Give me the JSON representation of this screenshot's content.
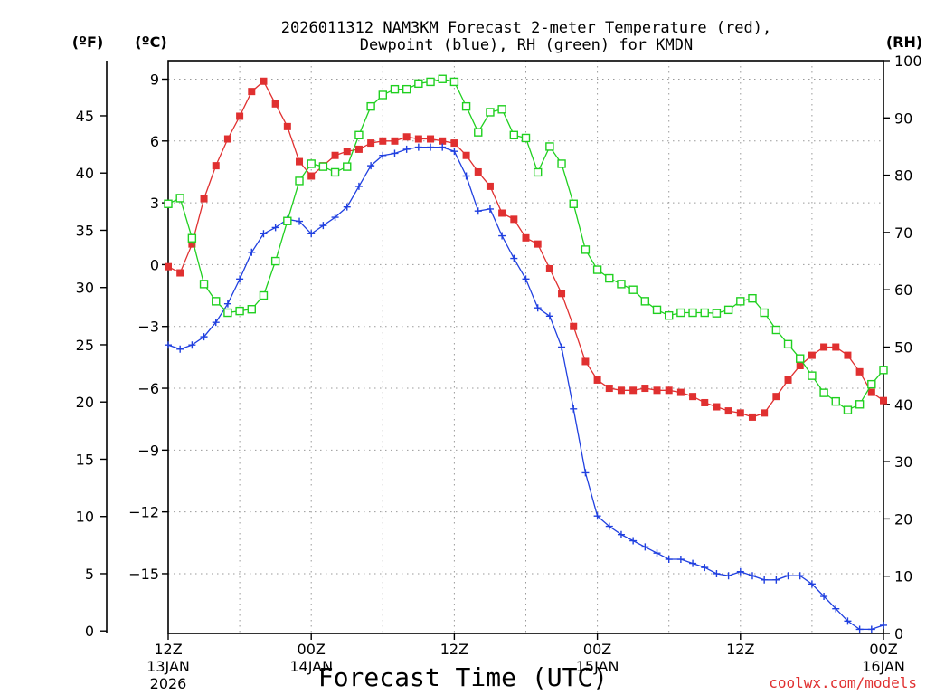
{
  "chart_data": {
    "type": "line",
    "title": "2026011312 NAM3KM Forecast 2-meter Temperature (red),",
    "subtitle": "Dewpoint (blue), RH (green) for KMDN",
    "xlabel": "Forecast Time (UTC)",
    "credit": "coolwx.com/models",
    "units": {
      "fahrenheit": "(ºF)",
      "celsius": "(ºC)",
      "rh": "(RH)"
    },
    "x_hours_range": [
      0,
      60
    ],
    "x_ticks": [
      {
        "hour": 0,
        "label": "12Z",
        "date": "13JAN",
        "year": "2026"
      },
      {
        "hour": 12,
        "label": "00Z",
        "date": "14JAN",
        "year": ""
      },
      {
        "hour": 24,
        "label": "12Z",
        "date": "",
        "year": ""
      },
      {
        "hour": 36,
        "label": "00Z",
        "date": "15JAN",
        "year": ""
      },
      {
        "hour": 48,
        "label": "12Z",
        "date": "",
        "year": ""
      },
      {
        "hour": 60,
        "label": "00Z",
        "date": "16JAN",
        "year": ""
      }
    ],
    "y_celsius": {
      "range": [
        -17.9,
        9.9
      ],
      "ticks": [
        9,
        6,
        3,
        0,
        -3,
        -6,
        -9,
        -12,
        -15
      ]
    },
    "y_fahrenheit": {
      "ticks": [
        45,
        40,
        35,
        30,
        25,
        20,
        15,
        10,
        5,
        0
      ]
    },
    "y_rh": {
      "range": [
        0,
        100
      ],
      "ticks": [
        100,
        90,
        80,
        70,
        60,
        50,
        40,
        30,
        20,
        10,
        0
      ]
    },
    "series": [
      {
        "name": "Temperature",
        "unit": "C",
        "color": "#e03030",
        "marker": "filled-square",
        "values": [
          -0.1,
          -0.4,
          1.0,
          3.2,
          4.8,
          6.1,
          7.2,
          8.4,
          8.9,
          7.8,
          6.7,
          5.0,
          4.3,
          4.8,
          5.3,
          5.5,
          5.6,
          5.9,
          6.0,
          6.0,
          6.2,
          6.1,
          6.1,
          6.0,
          5.9,
          5.3,
          4.5,
          3.8,
          2.5,
          2.2,
          1.3,
          1.0,
          -0.2,
          -1.4,
          -3.0,
          -4.7,
          -5.6,
          -6.0,
          -6.1,
          -6.1,
          -6.0,
          -6.1,
          -6.1,
          -6.2,
          -6.4,
          -6.7,
          -6.9,
          -7.1,
          -7.2,
          -7.4,
          -7.2,
          -6.4,
          -5.6,
          -4.9,
          -4.4,
          -4.0,
          -4.0,
          -4.4,
          -5.2,
          -6.2,
          -6.6
        ]
      },
      {
        "name": "Dewpoint",
        "unit": "C",
        "color": "#2040e0",
        "marker": "plus",
        "values": [
          -3.9,
          -4.1,
          -3.9,
          -3.5,
          -2.8,
          -1.9,
          -0.7,
          0.6,
          1.5,
          1.8,
          2.2,
          2.1,
          1.5,
          1.9,
          2.3,
          2.8,
          3.8,
          4.8,
          5.3,
          5.4,
          5.6,
          5.7,
          5.7,
          5.7,
          5.5,
          4.3,
          2.6,
          2.7,
          1.4,
          0.3,
          -0.7,
          -2.1,
          -2.5,
          -4.0,
          -7.0,
          -10.1,
          -12.2,
          -12.7,
          -13.1,
          -13.4,
          -13.7,
          -14.0,
          -14.3,
          -14.3,
          -14.5,
          -14.7,
          -15.0,
          -15.1,
          -14.9,
          -15.1,
          -15.3,
          -15.3,
          -15.1,
          -15.1,
          -15.5,
          -16.1,
          -16.7,
          -17.3,
          -17.7,
          -17.7,
          -17.5
        ]
      },
      {
        "name": "RH",
        "unit": "%",
        "color": "#20d020",
        "marker": "open-square",
        "values": [
          75,
          76,
          69,
          61,
          58,
          56,
          56.3,
          56.6,
          59,
          65,
          72,
          79,
          82,
          81.5,
          80.5,
          81.5,
          87,
          92,
          94,
          95,
          95,
          96,
          96.3,
          96.8,
          96.3,
          92,
          87.5,
          91,
          91.5,
          87,
          86.5,
          80.5,
          85,
          82,
          75,
          67,
          63.5,
          62,
          61,
          60,
          58,
          56.5,
          55.5,
          56,
          56,
          56,
          55.9,
          56.5,
          58,
          58.5,
          56,
          53,
          50.5,
          48,
          45,
          42,
          40.5,
          39,
          40,
          43.5,
          46
        ]
      }
    ]
  }
}
